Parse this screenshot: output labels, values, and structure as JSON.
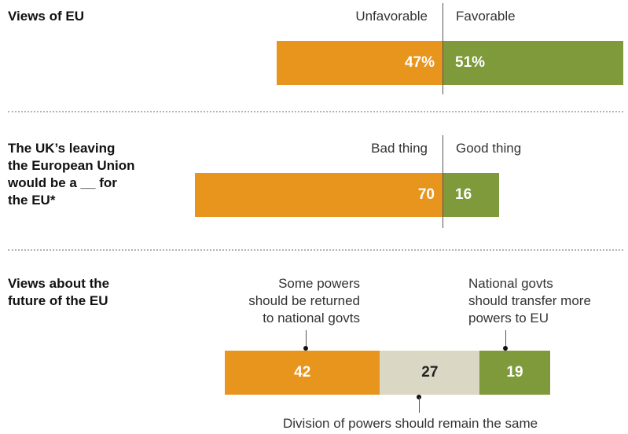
{
  "colors": {
    "unfavorable": "#E8951E",
    "favorable": "#7E9A3B",
    "neutral": "#DAD7C4",
    "neutral_text": "#222222"
  },
  "chart_data": [
    {
      "type": "bar",
      "title": "Views of EU",
      "categories": [
        "Unfavorable",
        "Favorable"
      ],
      "values": [
        47,
        51
      ],
      "value_labels": [
        "47%",
        "51%"
      ]
    },
    {
      "type": "bar",
      "title_lines": [
        "The UK’s leaving",
        "the European Union",
        "would be a __ for",
        "the EU*"
      ],
      "categories": [
        "Bad thing",
        "Good thing"
      ],
      "values": [
        70,
        16
      ],
      "value_labels": [
        "70",
        "16"
      ]
    },
    {
      "type": "bar",
      "title_lines": [
        "Views about the",
        "future of the EU"
      ],
      "segments": [
        {
          "label_lines": [
            "Some powers",
            "should be returned",
            "to national govts"
          ],
          "value": 42,
          "value_label": "42"
        },
        {
          "label_lines": [
            "Division of powers should remain the same"
          ],
          "value": 27,
          "value_label": "27"
        },
        {
          "label_lines": [
            "National govts",
            "should transfer more",
            "powers to EU"
          ],
          "value": 19,
          "value_label": "19"
        }
      ]
    }
  ]
}
